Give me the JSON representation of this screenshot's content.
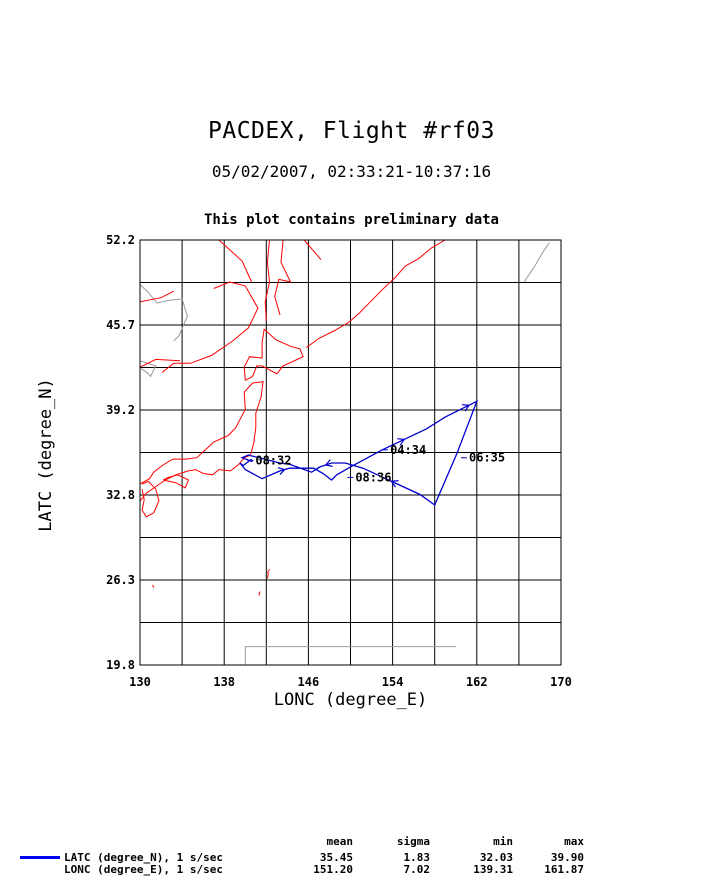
{
  "header": {
    "title": "PACDEX, Flight #rf03",
    "subtitle": "05/02/2007, 02:33:21-10:37:16",
    "note": "This plot contains preliminary data"
  },
  "axes": {
    "xlabel": "LONC (degree_E)",
    "ylabel": "LATC (degree_N)"
  },
  "colors": {
    "track": "#0000cc",
    "coast": "#ff0000",
    "border": "#9a9a9a",
    "grid": "#000000"
  },
  "chart_data": {
    "type": "line",
    "xlim": [
      130,
      170
    ],
    "ylim": [
      19.8,
      52.2
    ],
    "xticks": [
      "130",
      "138",
      "146",
      "154",
      "162",
      "170"
    ],
    "yticks": [
      "19.8",
      "26.3",
      "32.8",
      "39.2",
      "45.7",
      "52.2"
    ],
    "grid": true,
    "series": [
      {
        "name": "flight track",
        "x": [
          140.6,
          139.8,
          139.5,
          140.0,
          141.6,
          143.3,
          144.2,
          146.5,
          147.4,
          148.2,
          148.7,
          150.0,
          153.0,
          157.2,
          159.0,
          160.5,
          162.0,
          160.1,
          158.0,
          156.6,
          151.2,
          149.5,
          148.2,
          147.1,
          146.3,
          144.2,
          143.3,
          140.3,
          139.7,
          140.7
        ],
        "y": [
          35.5,
          35.0,
          35.2,
          34.7,
          34.0,
          34.6,
          34.8,
          34.8,
          34.4,
          33.9,
          34.3,
          34.9,
          36.2,
          37.8,
          38.7,
          39.3,
          39.9,
          35.9,
          32.0,
          32.8,
          34.8,
          35.2,
          35.2,
          34.9,
          34.5,
          35.1,
          35.2,
          35.8,
          35.6,
          35.3
        ]
      }
    ],
    "annotations": [
      {
        "text": "08:32",
        "x": 140.2,
        "y": 35.4
      },
      {
        "text": "04:34",
        "x": 153.0,
        "y": 36.2
      },
      {
        "text": "06:35",
        "x": 160.5,
        "y": 35.6
      },
      {
        "text": "08:36",
        "x": 149.7,
        "y": 34.1
      }
    ]
  },
  "map_data": {
    "coastlines": [
      [
        [
          130.0,
          32.3
        ],
        [
          130.6,
          32.9
        ],
        [
          131.5,
          33.4
        ],
        [
          132.4,
          33.9
        ],
        [
          133.4,
          34.3
        ],
        [
          134.6,
          34.6
        ],
        [
          135.3,
          34.7
        ],
        [
          136.0,
          34.4
        ],
        [
          136.9,
          34.3
        ],
        [
          137.5,
          34.7
        ],
        [
          138.6,
          34.6
        ],
        [
          139.4,
          35.1
        ],
        [
          139.9,
          35.6
        ],
        [
          140.5,
          35.8
        ],
        [
          140.8,
          36.7
        ],
        [
          141.0,
          37.9
        ],
        [
          141.0,
          39.0
        ],
        [
          141.5,
          40.2
        ],
        [
          141.7,
          41.4
        ],
        [
          140.7,
          41.3
        ],
        [
          139.9,
          40.6
        ],
        [
          140.0,
          39.3
        ],
        [
          139.1,
          37.9
        ],
        [
          138.4,
          37.3
        ],
        [
          137.0,
          36.8
        ],
        [
          136.2,
          36.2
        ],
        [
          135.4,
          35.6
        ],
        [
          134.4,
          35.5
        ],
        [
          133.1,
          35.5
        ],
        [
          132.1,
          35.0
        ],
        [
          131.3,
          34.5
        ],
        [
          130.9,
          34.0
        ],
        [
          130.0,
          33.6
        ]
      ],
      [
        [
          130.2,
          33.6
        ],
        [
          130.8,
          33.8
        ],
        [
          131.5,
          33.2
        ],
        [
          131.8,
          32.3
        ],
        [
          131.3,
          31.4
        ],
        [
          130.6,
          31.1
        ],
        [
          130.2,
          31.6
        ],
        [
          130.4,
          32.4
        ],
        [
          130.2,
          33.2
        ]
      ],
      [
        [
          132.2,
          33.9
        ],
        [
          133.4,
          33.7
        ],
        [
          134.3,
          33.3
        ],
        [
          134.6,
          33.9
        ],
        [
          133.6,
          34.3
        ],
        [
          132.7,
          34.1
        ],
        [
          132.2,
          33.9
        ]
      ],
      [
        [
          140.0,
          41.5
        ],
        [
          140.7,
          41.8
        ],
        [
          141.1,
          42.6
        ],
        [
          141.6,
          42.6
        ],
        [
          143.0,
          42.0
        ],
        [
          143.6,
          42.6
        ],
        [
          144.4,
          42.9
        ],
        [
          145.5,
          43.3
        ],
        [
          145.2,
          43.9
        ],
        [
          144.3,
          44.1
        ],
        [
          142.9,
          44.6
        ],
        [
          141.8,
          45.4
        ],
        [
          141.6,
          44.4
        ],
        [
          141.6,
          43.2
        ],
        [
          140.4,
          43.3
        ],
        [
          139.9,
          42.5
        ],
        [
          140.0,
          41.5
        ]
      ],
      [
        [
          142.0,
          46.0
        ],
        [
          141.9,
          47.5
        ],
        [
          142.3,
          49.0
        ],
        [
          142.1,
          50.5
        ],
        [
          142.3,
          52.2
        ]
      ],
      [
        [
          143.3,
          46.5
        ],
        [
          142.8,
          47.9
        ],
        [
          143.2,
          49.2
        ],
        [
          144.3,
          49.0
        ],
        [
          143.4,
          50.5
        ],
        [
          143.6,
          52.2
        ]
      ],
      [
        [
          145.8,
          44.0
        ],
        [
          147.0,
          44.7
        ],
        [
          148.5,
          45.3
        ],
        [
          149.8,
          45.9
        ],
        [
          150.8,
          46.6
        ],
        [
          151.9,
          47.5
        ],
        [
          153.0,
          48.4
        ],
        [
          154.2,
          49.3
        ],
        [
          155.2,
          50.2
        ],
        [
          156.5,
          50.8
        ],
        [
          157.7,
          51.6
        ],
        [
          159.0,
          52.2
        ]
      ],
      [
        [
          133.8,
          43.0
        ],
        [
          131.5,
          43.1
        ],
        [
          130.0,
          42.5
        ]
      ],
      [
        [
          130.0,
          47.5
        ],
        [
          132.0,
          47.8
        ],
        [
          133.2,
          48.3
        ]
      ],
      [
        [
          137.0,
          48.5
        ],
        [
          138.5,
          49.0
        ],
        [
          140.0,
          48.7
        ],
        [
          141.2,
          47.0
        ],
        [
          140.3,
          45.5
        ],
        [
          138.8,
          44.5
        ],
        [
          136.8,
          43.4
        ],
        [
          134.8,
          42.8
        ],
        [
          133.2,
          42.8
        ],
        [
          132.1,
          42.1
        ]
      ],
      [
        [
          137.5,
          52.2
        ],
        [
          139.7,
          50.6
        ],
        [
          140.6,
          49.0
        ]
      ],
      [
        [
          145.6,
          52.2
        ],
        [
          147.2,
          50.7
        ]
      ],
      [
        [
          142.3,
          27.1
        ],
        [
          142.1,
          26.8
        ]
      ],
      [
        [
          142.2,
          26.8
        ],
        [
          142.1,
          26.4
        ]
      ],
      [
        [
          141.4,
          25.4
        ],
        [
          141.3,
          25.1
        ]
      ],
      [
        [
          131.2,
          25.9
        ],
        [
          131.3,
          25.7
        ]
      ]
    ],
    "borders": [
      [
        [
          130.0,
          48.8
        ],
        [
          130.8,
          48.2
        ],
        [
          131.6,
          47.4
        ],
        [
          132.8,
          47.6
        ],
        [
          134.0,
          47.7
        ],
        [
          134.5,
          46.4
        ],
        [
          133.7,
          44.9
        ],
        [
          133.2,
          44.5
        ]
      ],
      [
        [
          130.0,
          43.0
        ],
        [
          131.5,
          42.6
        ],
        [
          131.0,
          41.8
        ],
        [
          130.8,
          42.0
        ],
        [
          130.1,
          42.4
        ]
      ],
      [
        [
          140.0,
          19.8
        ],
        [
          140.0,
          21.2
        ],
        [
          160.0,
          21.2
        ]
      ],
      [
        [
          166.5,
          49.0
        ],
        [
          167.5,
          50.2
        ],
        [
          168.3,
          51.3
        ],
        [
          168.9,
          52.0
        ]
      ]
    ]
  },
  "stats": {
    "headers": [
      "mean",
      "sigma",
      "min",
      "max"
    ],
    "rows": [
      {
        "label": "LATC (degree_N), 1 s/sec",
        "mean": "35.45",
        "sigma": "1.83",
        "min": "32.03",
        "max": "39.90"
      },
      {
        "label": "LONC (degree_E), 1 s/sec",
        "mean": "151.20",
        "sigma": "7.02",
        "min": "139.31",
        "max": "161.87"
      }
    ]
  }
}
